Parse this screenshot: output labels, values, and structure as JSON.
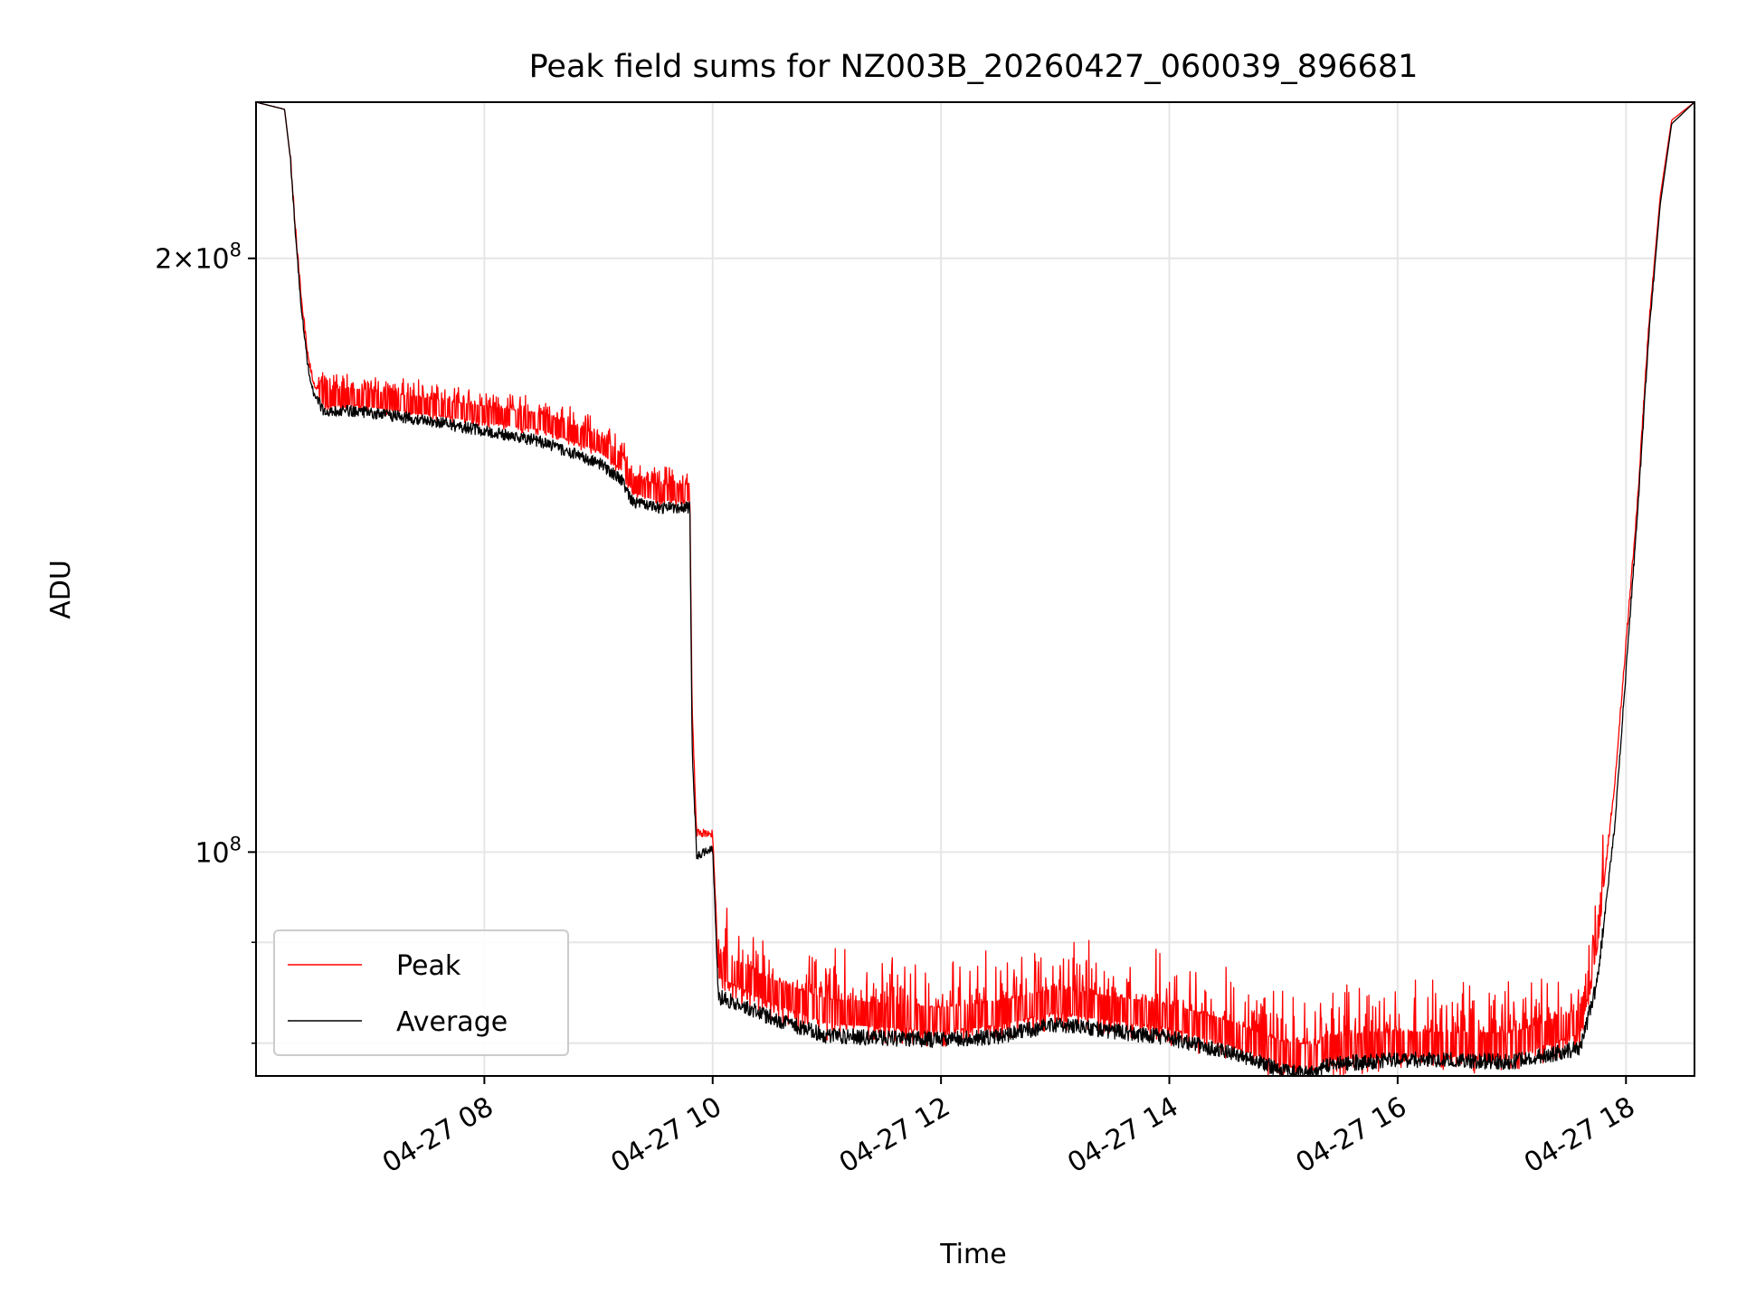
{
  "chart_data": {
    "type": "line",
    "title": "Peak field sums for NZ003B_20260427_060039_896681",
    "xlabel": "Time",
    "ylabel": "ADU",
    "yscale": "log",
    "xlim": [
      6.0,
      18.6
    ],
    "ylim": [
      77000000,
      240000000
    ],
    "grid": true,
    "legend_loc": "lower-left",
    "x_ticks": [
      {
        "value": 8,
        "label": "04-27 08"
      },
      {
        "value": 10,
        "label": "04-27 10"
      },
      {
        "value": 12,
        "label": "04-27 12"
      },
      {
        "value": 14,
        "label": "04-27 14"
      },
      {
        "value": 16,
        "label": "04-27 16"
      },
      {
        "value": 18,
        "label": "04-27 18"
      }
    ],
    "y_ticks_major": [
      {
        "value": 200000000,
        "base": "2×10",
        "exp": "8"
      },
      {
        "value": 100000000,
        "base": "10",
        "exp": "8"
      }
    ],
    "y_ticks_minor": [
      80000000,
      90000000
    ],
    "series": [
      {
        "name": "Peak",
        "color": "#ff0000",
        "x": [
          6.0,
          6.25,
          6.3,
          6.35,
          6.4,
          6.45,
          6.5,
          6.6,
          6.8,
          7.0,
          7.5,
          8.0,
          8.5,
          9.0,
          9.2,
          9.3,
          9.5,
          9.8,
          9.82,
          9.86,
          10.0,
          10.05,
          10.5,
          11.0,
          12.0,
          12.5,
          13.0,
          14.0,
          14.5,
          15.0,
          15.3,
          15.35,
          16.0,
          17.0,
          17.6,
          17.75,
          17.9,
          18.1,
          18.2,
          18.3,
          18.4,
          18.6
        ],
        "y": [
          240000000,
          238000000,
          225000000,
          205000000,
          190000000,
          179000000,
          173000000,
          169000000,
          169500000,
          169000000,
          167500000,
          166000000,
          164500000,
          160500000,
          157000000,
          153000000,
          151500000,
          151500000,
          118000000,
          102000000,
          102000000,
          87000000,
          84500000,
          82500000,
          81700000,
          82300000,
          83500000,
          82000000,
          80500000,
          78500000,
          78200000,
          79000000,
          79400000,
          79300000,
          81500000,
          90000000,
          108000000,
          150000000,
          185000000,
          215000000,
          235000000,
          240000000
        ]
      },
      {
        "name": "Average",
        "color": "#000000",
        "x": [
          6.0,
          6.25,
          6.3,
          6.35,
          6.4,
          6.45,
          6.5,
          6.6,
          6.8,
          7.0,
          7.5,
          8.0,
          8.5,
          9.0,
          9.2,
          9.3,
          9.5,
          9.8,
          9.82,
          9.86,
          10.0,
          10.05,
          10.5,
          11.0,
          12.0,
          12.5,
          13.0,
          14.0,
          14.5,
          15.0,
          15.3,
          15.35,
          16.0,
          17.0,
          17.6,
          17.75,
          17.9,
          18.1,
          18.2,
          18.3,
          18.4,
          18.6
        ],
        "y": [
          240000000,
          238000000,
          225000000,
          204000000,
          188000000,
          177000000,
          171000000,
          167000000,
          167500000,
          167000000,
          165500000,
          163500000,
          161500000,
          157500000,
          154500000,
          150500000,
          149500000,
          149500000,
          113000000,
          99500000,
          100500000,
          84500000,
          82500000,
          80700000,
          80300000,
          80600000,
          81800000,
          80500000,
          79200000,
          77500000,
          77200000,
          78000000,
          78500000,
          78300000,
          79500000,
          86000000,
          103000000,
          148000000,
          183000000,
          213000000,
          234000000,
          240000000
        ]
      }
    ]
  }
}
